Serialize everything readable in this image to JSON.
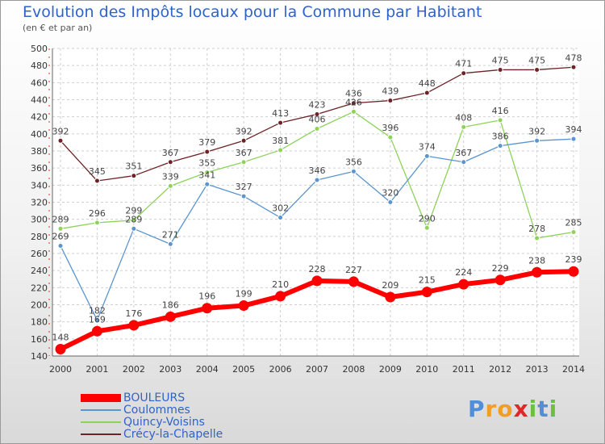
{
  "title": "Evolution des Impôts locaux pour la Commune par Habitant",
  "subtitle": "(en € et par an)",
  "logo": {
    "p": "P",
    "r": "r",
    "o": "o",
    "x": "x",
    "i1": "i",
    "t": "t",
    "i2": "i"
  },
  "chart_data": {
    "type": "line",
    "x": [
      2000,
      2001,
      2002,
      2003,
      2004,
      2005,
      2006,
      2007,
      2008,
      2009,
      2010,
      2011,
      2012,
      2013,
      2014
    ],
    "ylim": [
      140,
      500
    ],
    "yticks": [
      140,
      160,
      180,
      200,
      220,
      240,
      260,
      280,
      300,
      320,
      340,
      360,
      380,
      400,
      420,
      440,
      460,
      480,
      500
    ],
    "grid": true,
    "legend_position": "bottom-left",
    "series": [
      {
        "name": "Crécy-la-Chapelle",
        "color": "#6e2126",
        "width": 1.3,
        "values": [
          392,
          345,
          351,
          367,
          379,
          392,
          413,
          423,
          436,
          439,
          448,
          471,
          475,
          475,
          478
        ]
      },
      {
        "name": "Quincy-Voisins",
        "color": "#8ed25a",
        "width": 1.3,
        "values": [
          289,
          296,
          299,
          339,
          355,
          367,
          381,
          406,
          426,
          396,
          290,
          408,
          416,
          278,
          285
        ]
      },
      {
        "name": "Coulommes",
        "color": "#5a95d0",
        "width": 1.3,
        "values": [
          269,
          182,
          289,
          271,
          341,
          327,
          302,
          346,
          356,
          320,
          374,
          367,
          386,
          392,
          394
        ]
      },
      {
        "name": "BOULEURS",
        "color": "#ff0000",
        "width": 6,
        "values": [
          148,
          169,
          176,
          186,
          196,
          199,
          210,
          228,
          227,
          209,
          215,
          224,
          229,
          238,
          239
        ]
      }
    ],
    "data_labels": {
      "Crécy-la-Chapelle": [
        "392",
        "345",
        "351",
        "367",
        "379",
        "392",
        "413",
        "423",
        "436",
        "439",
        "448",
        "471",
        "475",
        "475",
        "478"
      ],
      "Quincy-Voisins": [
        "289",
        "296",
        "299",
        "339",
        "355",
        "367",
        "381",
        "406",
        "426",
        "396",
        "290",
        "408",
        "416",
        "278",
        "285"
      ],
      "Coulommes": [
        "269",
        "182",
        "289",
        "271",
        "341",
        "327",
        "302",
        "346",
        "356",
        "320",
        "374",
        "367",
        "386",
        "392",
        "394"
      ],
      "BOULEURS": [
        "148",
        "169",
        "176",
        "186",
        "196",
        "199",
        "210",
        "228",
        "227",
        "209",
        "215",
        "224",
        "229",
        "238",
        "239"
      ]
    },
    "legend_order": [
      "BOULEURS",
      "Coulommes",
      "Quincy-Voisins",
      "Crécy-la-Chapelle"
    ]
  }
}
